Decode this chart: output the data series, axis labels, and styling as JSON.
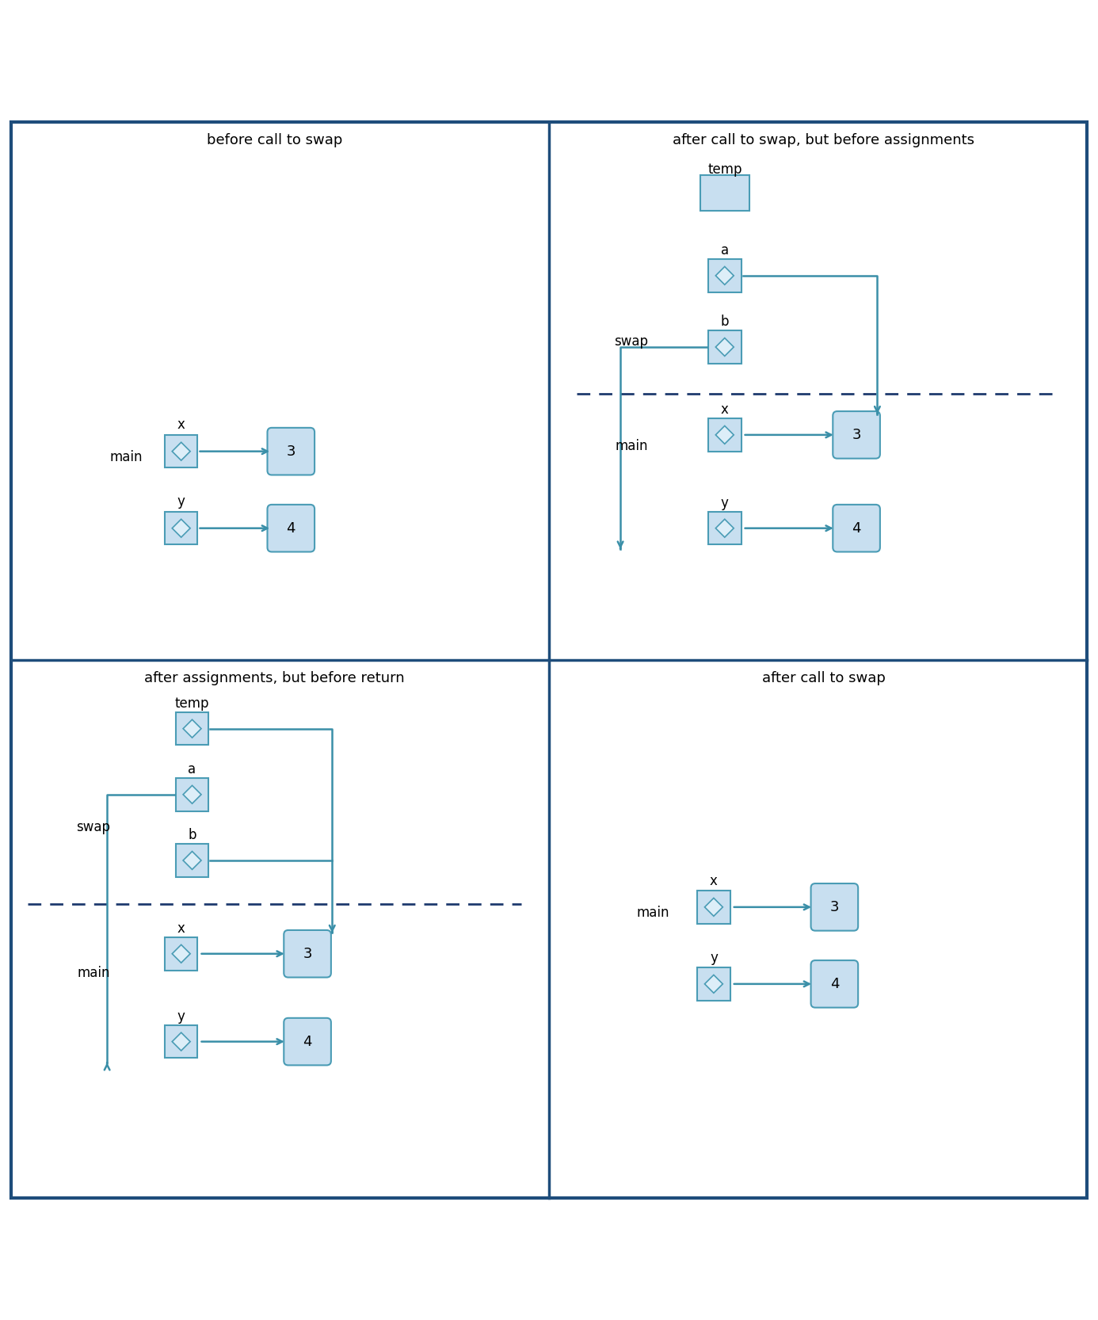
{
  "title_tl": "before call to swap",
  "title_tr": "after call to swap, but before assignments",
  "title_bl": "after assignments, but before return",
  "title_br": "after call to swap",
  "border_color": "#1e4d7b",
  "box_fill": "#c8dff0",
  "box_edge": "#4a9cb5",
  "diamond_fill": "#ddeef8",
  "diamond_edge": "#4a9cb5",
  "arrow_color": "#3a8fa8",
  "dashed_color": "#1e3a6e",
  "bg_color": "#ffffff",
  "title_fontsize": 13,
  "label_fontsize": 12,
  "value_fontsize": 13
}
